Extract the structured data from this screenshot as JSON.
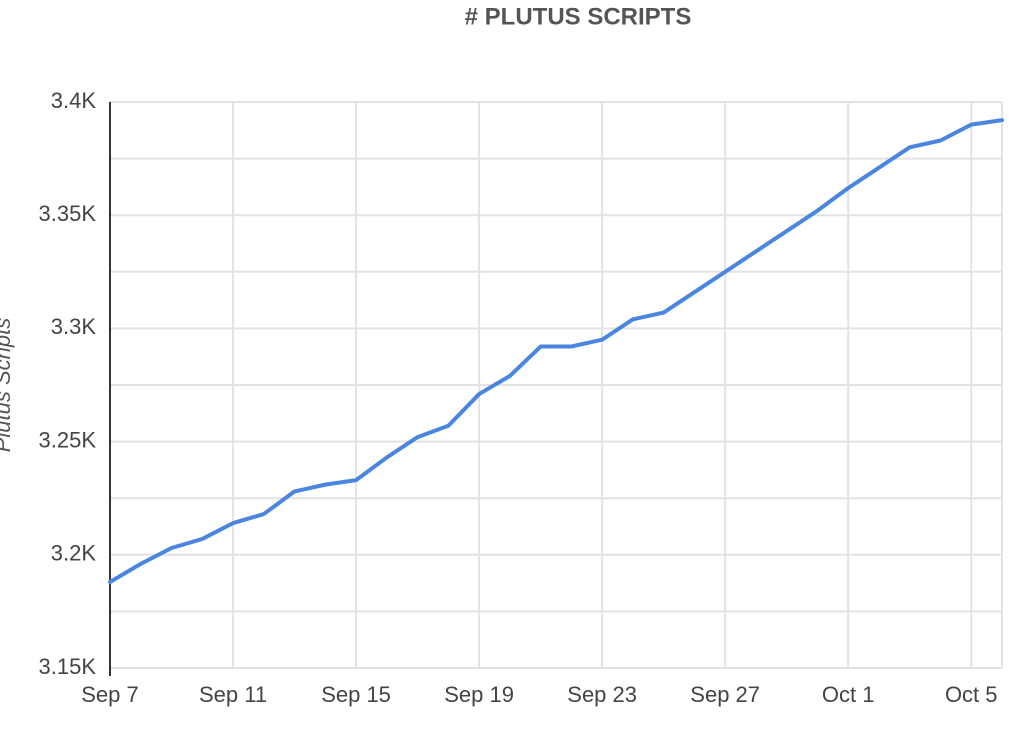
{
  "chart_data": {
    "type": "line",
    "title": "# PLUTUS SCRIPTS",
    "y_label": "Plutus Scripts",
    "categories": [
      "Sep 7",
      null,
      null,
      null,
      "Sep 11",
      null,
      null,
      null,
      "Sep 15",
      null,
      null,
      null,
      "Sep 19",
      null,
      null,
      null,
      "Sep 23",
      null,
      null,
      null,
      "Sep 27",
      null,
      null,
      null,
      "Oct 1",
      null,
      null,
      null,
      "Oct 5",
      null
    ],
    "series": [
      {
        "name": "Plutus Scripts",
        "color": "#4a86e0",
        "values": [
          3188,
          3196,
          3203,
          3207,
          3214,
          3218,
          3228,
          3231,
          3233,
          3243,
          3252,
          3257,
          3271,
          3279,
          3292,
          3292,
          3295,
          3304,
          3307,
          3316,
          3325,
          3334,
          3343,
          3352,
          3362,
          3371,
          3380,
          3383,
          3390,
          3392
        ]
      }
    ],
    "ylim": [
      3150,
      3400
    ],
    "yticks": [
      {
        "value": 3150,
        "label": "3.15K"
      },
      {
        "value": 3200,
        "label": "3.2K"
      },
      {
        "value": 3250,
        "label": "3.25K"
      },
      {
        "value": 3300,
        "label": "3.3K"
      },
      {
        "value": 3350,
        "label": "3.35K"
      },
      {
        "value": 3400,
        "label": "3.4K"
      }
    ],
    "grid": true
  }
}
